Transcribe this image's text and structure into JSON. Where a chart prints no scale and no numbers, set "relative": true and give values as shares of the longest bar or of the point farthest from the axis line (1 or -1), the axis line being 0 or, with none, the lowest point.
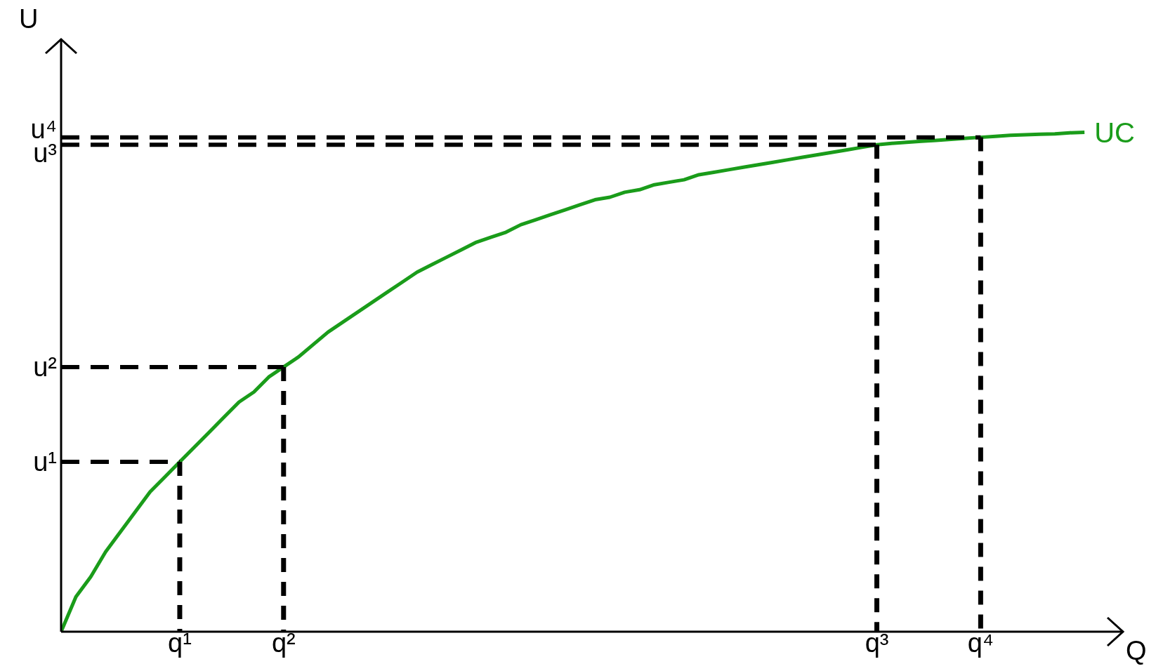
{
  "chart_data": {
    "type": "line",
    "relative": true,
    "xlabel": "Q",
    "ylabel": "U",
    "categories": [
      null,
      null,
      null,
      null,
      null,
      null,
      null,
      null,
      "q¹",
      null,
      null,
      null,
      null,
      null,
      null,
      "q²",
      null,
      null,
      null,
      null,
      null,
      null,
      null,
      null,
      null,
      null,
      null,
      null,
      null,
      null,
      null,
      null,
      null,
      null,
      null,
      null,
      null,
      null,
      null,
      null,
      null,
      null,
      null,
      null,
      null,
      null,
      null,
      null,
      null,
      null,
      null,
      null,
      null,
      null,
      null,
      "q³",
      null,
      null,
      null,
      null,
      null,
      null,
      "q⁴",
      null,
      null,
      null,
      null,
      null,
      null,
      null,
      null,
      null
    ],
    "series": [
      {
        "name": "UC",
        "color": "#1a9c1a",
        "values": [
          0,
          0.07,
          0.11,
          0.16,
          0.2,
          0.24,
          0.28,
          0.31,
          0.34,
          0.37,
          0.4,
          0.43,
          0.46,
          0.48,
          0.51,
          0.53,
          0.55,
          0.575,
          0.6,
          0.62,
          0.64,
          0.66,
          0.68,
          0.7,
          0.72,
          0.735,
          0.75,
          0.765,
          0.78,
          0.79,
          0.8,
          0.815,
          0.825,
          0.835,
          0.845,
          0.855,
          0.865,
          0.87,
          0.88,
          0.885,
          0.895,
          0.9,
          0.905,
          0.915,
          0.92,
          0.925,
          0.93,
          0.935,
          0.94,
          0.945,
          0.95,
          0.955,
          0.96,
          0.965,
          0.97,
          0.975,
          0.978,
          0.98,
          0.982,
          0.984,
          0.986,
          0.988,
          0.99,
          0.992,
          0.994,
          0.995,
          0.996,
          0.997,
          0.999,
          1,
          null,
          null
        ]
      },
      {
        "name": "u¹",
        "color": "#000000",
        "line_style": "dashed",
        "values": [
          0.34,
          0.34,
          0.34,
          0.34,
          0.34,
          0.34,
          0.34,
          0.34,
          0.34,
          null,
          null,
          null,
          null,
          null,
          null,
          null,
          null,
          null,
          null,
          null,
          null,
          null,
          null,
          null,
          null,
          null,
          null,
          null,
          null,
          null,
          null,
          null,
          null,
          null,
          null,
          null,
          null,
          null,
          null,
          null,
          null,
          null,
          null,
          null,
          null,
          null,
          null,
          null,
          null,
          null,
          null,
          null,
          null,
          null,
          null,
          null,
          null,
          null,
          null,
          null,
          null,
          null,
          null,
          null,
          null,
          null,
          null,
          null,
          null,
          null,
          null,
          null
        ]
      },
      {
        "name": "u²",
        "color": "#000000",
        "line_style": "dashed",
        "values": [
          0.53,
          0.53,
          0.53,
          0.53,
          0.53,
          0.53,
          0.53,
          0.53,
          0.53,
          0.53,
          0.53,
          0.53,
          0.53,
          0.53,
          0.53,
          0.53,
          null,
          null,
          null,
          null,
          null,
          null,
          null,
          null,
          null,
          null,
          null,
          null,
          null,
          null,
          null,
          null,
          null,
          null,
          null,
          null,
          null,
          null,
          null,
          null,
          null,
          null,
          null,
          null,
          null,
          null,
          null,
          null,
          null,
          null,
          null,
          null,
          null,
          null,
          null,
          null,
          null,
          null,
          null,
          null,
          null,
          null,
          null,
          null,
          null,
          null,
          null,
          null,
          null,
          null,
          null,
          null
        ]
      },
      {
        "name": "u³",
        "color": "#000000",
        "line_style": "dashed",
        "values": [
          0.975,
          0.975,
          0.975,
          0.975,
          0.975,
          0.975,
          0.975,
          0.975,
          0.975,
          0.975,
          0.975,
          0.975,
          0.975,
          0.975,
          0.975,
          0.975,
          0.975,
          0.975,
          0.975,
          0.975,
          0.975,
          0.975,
          0.975,
          0.975,
          0.975,
          0.975,
          0.975,
          0.975,
          0.975,
          0.975,
          0.975,
          0.975,
          0.975,
          0.975,
          0.975,
          0.975,
          0.975,
          0.975,
          0.975,
          0.975,
          0.975,
          0.975,
          0.975,
          0.975,
          0.975,
          0.975,
          0.975,
          0.975,
          0.975,
          0.975,
          0.975,
          0.975,
          0.975,
          0.975,
          0.975,
          0.975,
          null,
          null,
          null,
          null,
          null,
          null,
          null,
          null,
          null,
          null,
          null,
          null,
          null,
          null,
          null,
          null
        ]
      },
      {
        "name": "u⁴",
        "color": "#000000",
        "line_style": "dashed",
        "values": [
          0.99,
          0.99,
          0.99,
          0.99,
          0.99,
          0.99,
          0.99,
          0.99,
          0.99,
          0.99,
          0.99,
          0.99,
          0.99,
          0.99,
          0.99,
          0.99,
          0.99,
          0.99,
          0.99,
          0.99,
          0.99,
          0.99,
          0.99,
          0.99,
          0.99,
          0.99,
          0.99,
          0.99,
          0.99,
          0.99,
          0.99,
          0.99,
          0.99,
          0.99,
          0.99,
          0.99,
          0.99,
          0.99,
          0.99,
          0.99,
          0.99,
          0.99,
          0.99,
          0.99,
          0.99,
          0.99,
          0.99,
          0.99,
          0.99,
          0.99,
          0.99,
          0.99,
          0.99,
          0.99,
          0.99,
          0.99,
          0.99,
          0.99,
          0.99,
          0.99,
          0.99,
          0.99,
          0.99,
          null,
          null,
          null,
          null,
          null,
          null,
          null,
          null,
          null
        ]
      }
    ]
  }
}
